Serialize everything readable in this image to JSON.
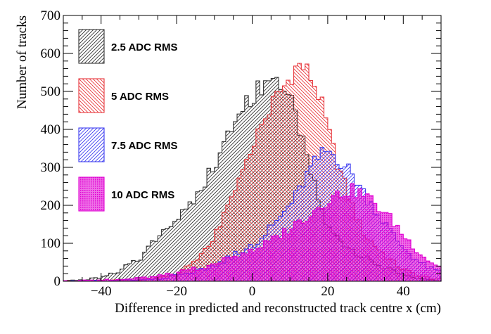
{
  "chart_data": {
    "type": "histogram",
    "xlabel": "Difference in predicted and reconstructed track centre x (cm)",
    "ylabel": "Number of tracks",
    "xlim": [
      -50,
      50
    ],
    "ylim": [
      0,
      700
    ],
    "x_ticks": [
      -40,
      -20,
      0,
      20,
      40
    ],
    "y_ticks": [
      0,
      100,
      200,
      300,
      400,
      500,
      600,
      700
    ],
    "x_tick_labels": [
      "−40",
      "−20",
      "0",
      "20",
      "40"
    ],
    "y_tick_labels": [
      "0",
      "100",
      "200",
      "300",
      "400",
      "500",
      "600",
      "700"
    ],
    "legend_position": "top-left",
    "grid": false,
    "series": [
      {
        "name": "2.5 ADC RMS",
        "color": "#333333",
        "hatch": "diag-right",
        "fill_style": "hatched",
        "profile": [
          [
            -50,
            0
          ],
          [
            -44,
            4
          ],
          [
            -40,
            12
          ],
          [
            -35,
            30
          ],
          [
            -30,
            60
          ],
          [
            -25,
            110
          ],
          [
            -20,
            165
          ],
          [
            -15,
            225
          ],
          [
            -10,
            310
          ],
          [
            -5,
            410
          ],
          [
            0,
            490
          ],
          [
            5,
            540
          ],
          [
            8,
            520
          ],
          [
            10,
            480
          ],
          [
            12,
            420
          ],
          [
            15,
            300
          ],
          [
            18,
            200
          ],
          [
            20,
            140
          ],
          [
            22,
            120
          ],
          [
            25,
            95
          ],
          [
            30,
            60
          ],
          [
            35,
            35
          ],
          [
            40,
            15
          ],
          [
            45,
            6
          ],
          [
            50,
            2
          ]
        ]
      },
      {
        "name": "5 ADC RMS",
        "color": "#e8373c",
        "hatch": "diag-left",
        "fill_style": "hatched",
        "profile": [
          [
            -50,
            0
          ],
          [
            -35,
            2
          ],
          [
            -28,
            6
          ],
          [
            -22,
            15
          ],
          [
            -18,
            30
          ],
          [
            -14,
            60
          ],
          [
            -10,
            120
          ],
          [
            -8,
            160
          ],
          [
            -5,
            220
          ],
          [
            -2,
            300
          ],
          [
            0,
            360
          ],
          [
            3,
            420
          ],
          [
            6,
            480
          ],
          [
            9,
            520
          ],
          [
            12,
            570
          ],
          [
            14,
            560
          ],
          [
            16,
            530
          ],
          [
            18,
            480
          ],
          [
            20,
            400
          ],
          [
            22,
            330
          ],
          [
            24,
            270
          ],
          [
            26,
            210
          ],
          [
            28,
            160
          ],
          [
            30,
            120
          ],
          [
            33,
            90
          ],
          [
            36,
            60
          ],
          [
            40,
            30
          ],
          [
            45,
            12
          ],
          [
            50,
            4
          ]
        ]
      },
      {
        "name": "7.5 ADC RMS",
        "color": "#3c3cf0",
        "hatch": "diag-right",
        "fill_style": "hatched",
        "profile": [
          [
            -50,
            0
          ],
          [
            -30,
            3
          ],
          [
            -22,
            10
          ],
          [
            -16,
            25
          ],
          [
            -10,
            40
          ],
          [
            -5,
            70
          ],
          [
            0,
            95
          ],
          [
            4,
            130
          ],
          [
            8,
            175
          ],
          [
            12,
            230
          ],
          [
            15,
            290
          ],
          [
            18,
            330
          ],
          [
            20,
            345
          ],
          [
            22,
            330
          ],
          [
            25,
            300
          ],
          [
            28,
            260
          ],
          [
            30,
            225
          ],
          [
            33,
            185
          ],
          [
            36,
            140
          ],
          [
            39,
            100
          ],
          [
            42,
            70
          ],
          [
            45,
            45
          ],
          [
            48,
            30
          ],
          [
            50,
            25
          ]
        ]
      },
      {
        "name": "10 ADC RMS",
        "color": "#e000d2",
        "hatch": "dense",
        "fill_style": "dense",
        "profile": [
          [
            -50,
            0
          ],
          [
            -35,
            4
          ],
          [
            -25,
            12
          ],
          [
            -18,
            25
          ],
          [
            -12,
            40
          ],
          [
            -6,
            60
          ],
          [
            0,
            80
          ],
          [
            5,
            105
          ],
          [
            10,
            140
          ],
          [
            15,
            175
          ],
          [
            18,
            200
          ],
          [
            21,
            220
          ],
          [
            24,
            235
          ],
          [
            26,
            240
          ],
          [
            28,
            235
          ],
          [
            30,
            225
          ],
          [
            32,
            210
          ],
          [
            34,
            190
          ],
          [
            36,
            170
          ],
          [
            38,
            150
          ],
          [
            40,
            120
          ],
          [
            43,
            90
          ],
          [
            46,
            60
          ],
          [
            50,
            35
          ]
        ]
      }
    ]
  }
}
